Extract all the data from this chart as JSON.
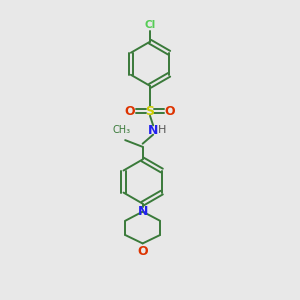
{
  "background_color": "#e8e8e8",
  "bond_color": "#3a7a3a",
  "cl_color": "#55cc55",
  "s_color": "#cccc00",
  "o_color": "#dd3300",
  "n_color": "#2222ee",
  "h_color": "#555555",
  "figsize": [
    3.0,
    3.0
  ],
  "dpi": 100,
  "xlim": [
    0,
    10
  ],
  "ylim": [
    0,
    14
  ]
}
